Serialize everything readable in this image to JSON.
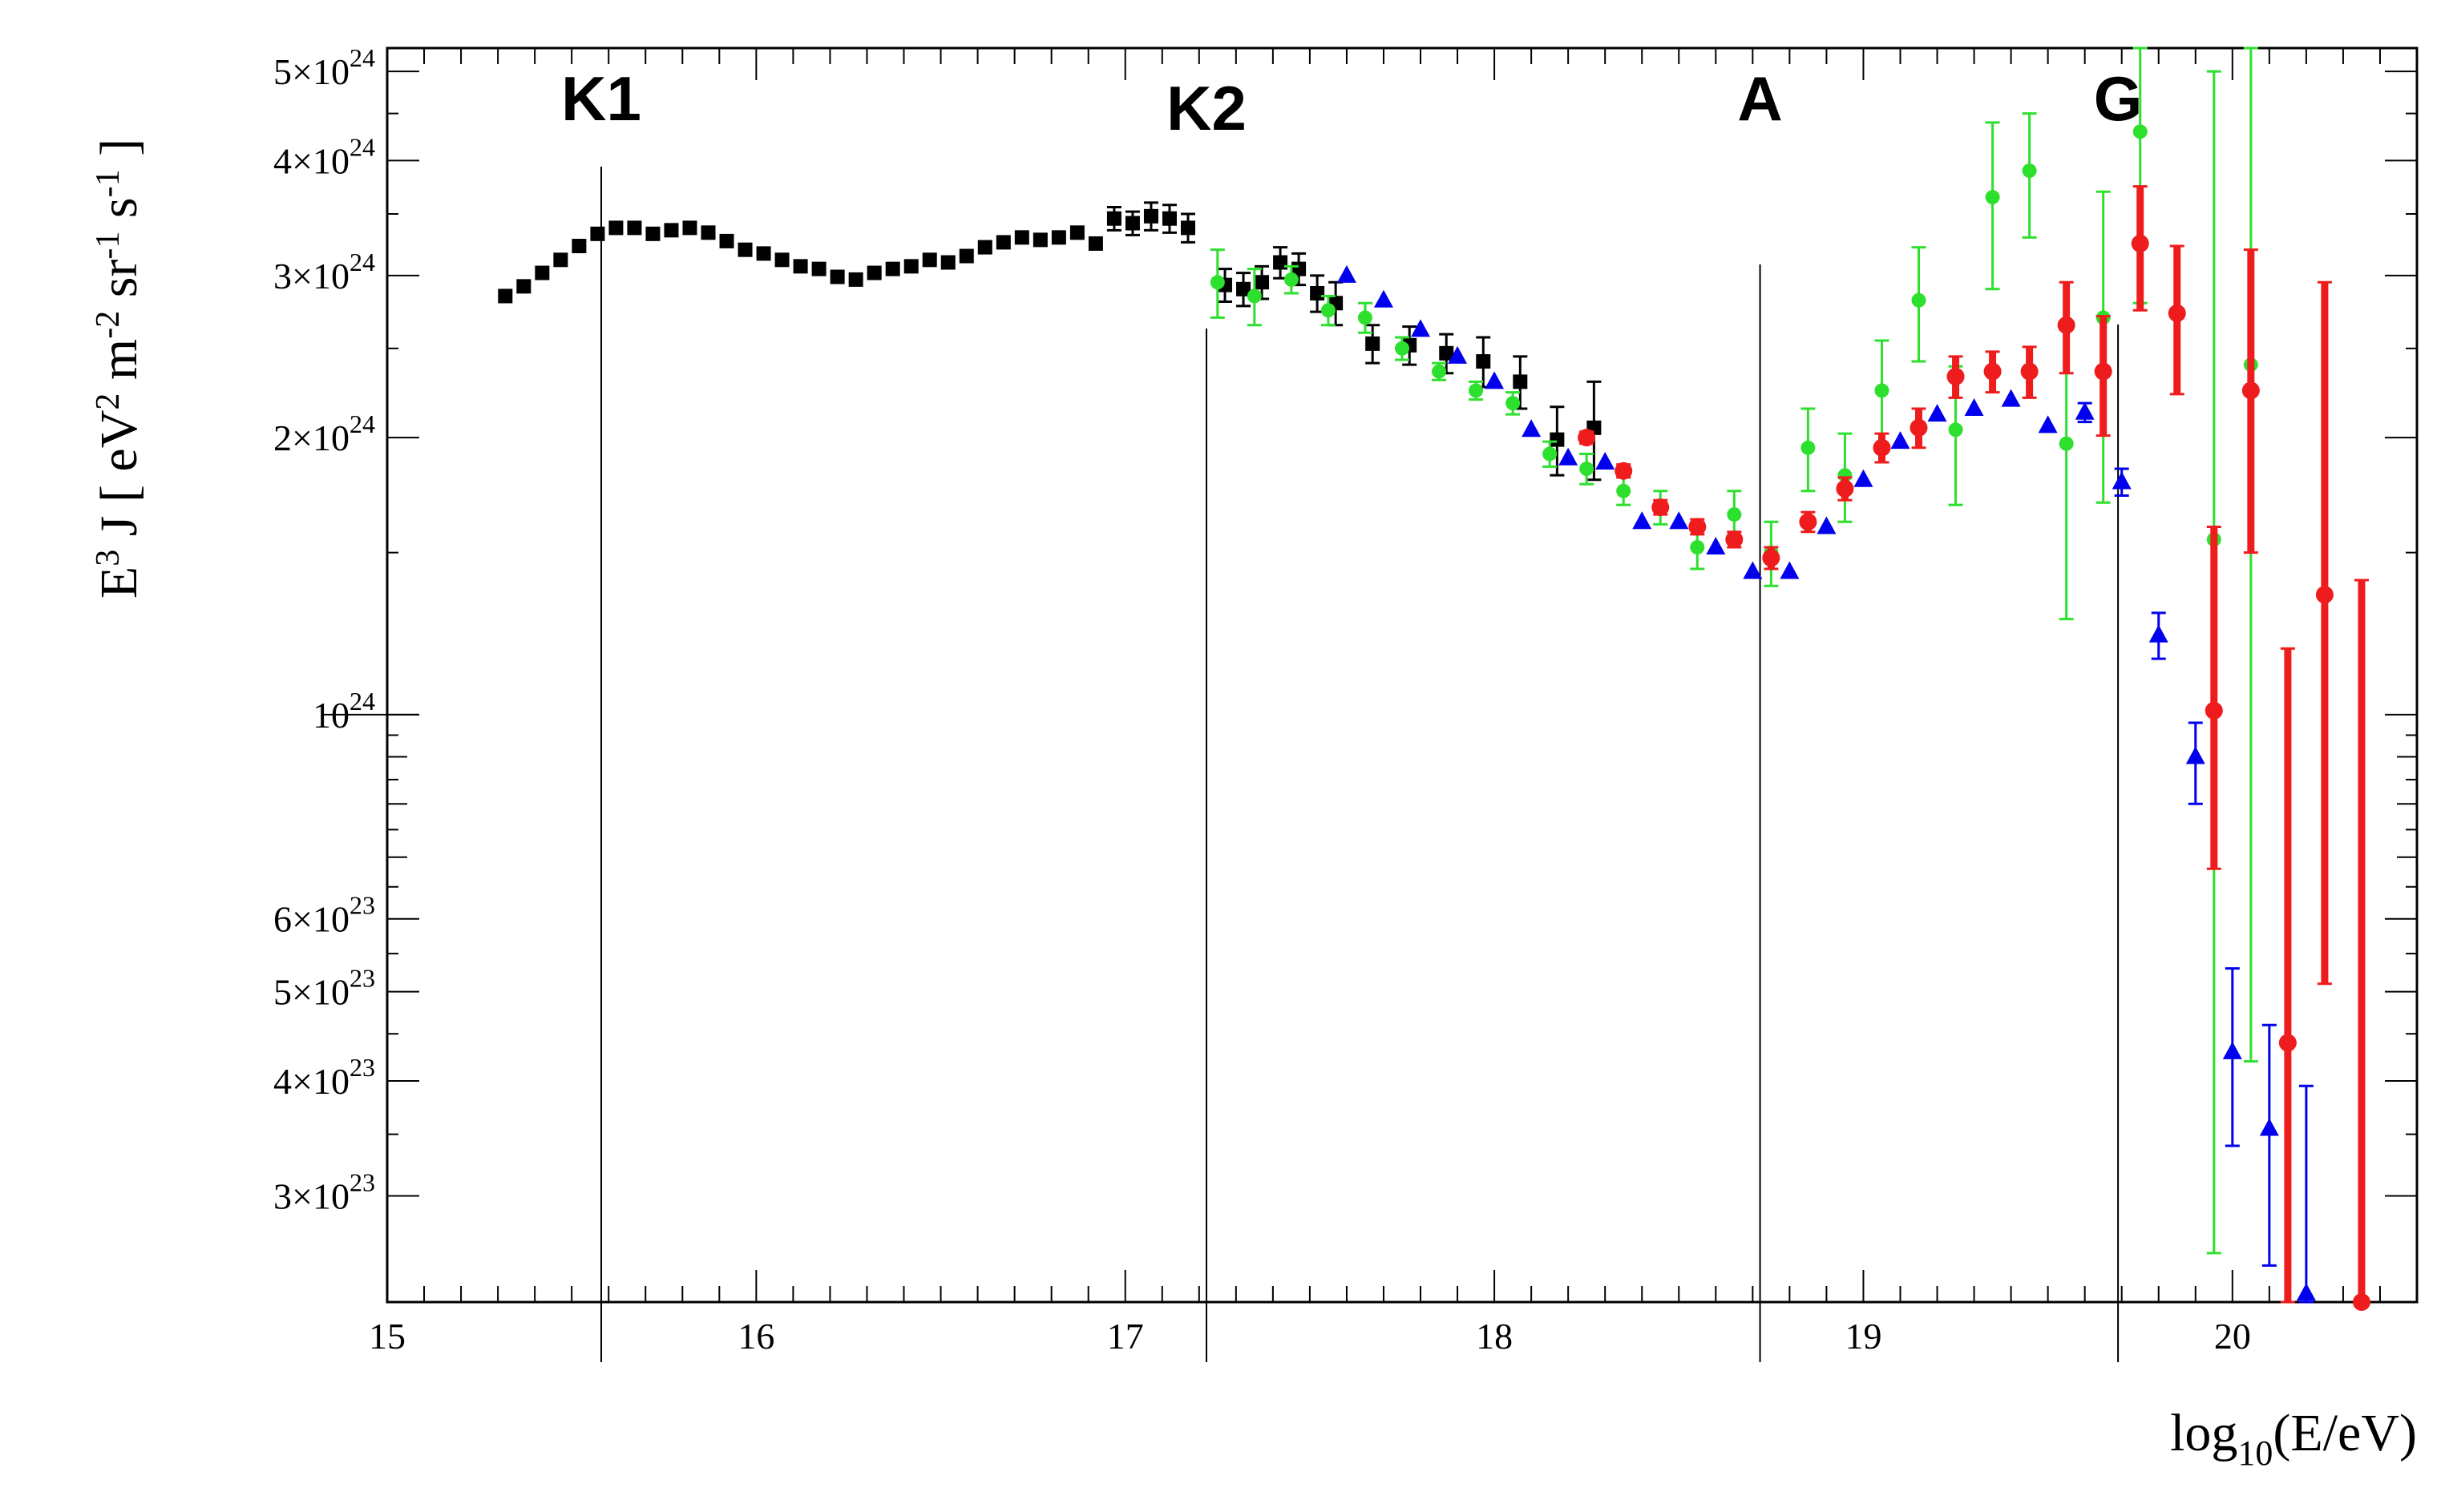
{
  "chart_data": {
    "type": "scatter",
    "title": "",
    "xlabel": "log10(E/eV)",
    "ylabel": "E3 J [ eV2 m-2 sr-1 s-1 ]",
    "xlim": [
      15,
      20.5
    ],
    "ylim": [
      2.3e+23,
      5.3e+24
    ],
    "yscale": "log",
    "grid": false,
    "x_ticks": [
      {
        "value": 15,
        "label": "15"
      },
      {
        "value": 16,
        "label": "16"
      },
      {
        "value": 17,
        "label": "17"
      },
      {
        "value": 18,
        "label": "18"
      },
      {
        "value": 19,
        "label": "19"
      },
      {
        "value": 20,
        "label": "20"
      }
    ],
    "y_ticks": [
      {
        "value": 3e+23,
        "mant": "3×10",
        "exp": "23"
      },
      {
        "value": 4e+23,
        "mant": "4×10",
        "exp": "23"
      },
      {
        "value": 5e+23,
        "mant": "5×10",
        "exp": "23"
      },
      {
        "value": 6e+23,
        "mant": "6×10",
        "exp": "23"
      },
      {
        "value": 1e+24,
        "mant": "10",
        "exp": "24"
      },
      {
        "value": 2e+24,
        "mant": "2×10",
        "exp": "24"
      },
      {
        "value": 3e+24,
        "mant": "3×10",
        "exp": "24"
      },
      {
        "value": 4e+24,
        "mant": "4×10",
        "exp": "24"
      },
      {
        "value": 5e+24,
        "mant": "5×10",
        "exp": "24"
      }
    ],
    "x_label_parts": {
      "base": "log",
      "sub": "10",
      "rest": "(E/eV)"
    },
    "y_label_parts": [
      {
        "t": "E",
        "sup": "3"
      },
      {
        "t": " J [ eV",
        "sup": "2"
      },
      {
        "t": " m",
        "sup": "-2"
      },
      {
        "t": " sr",
        "sup": "-1"
      },
      {
        "t": " s",
        "sup": "-1"
      },
      {
        "t": " ]",
        "sup": ""
      }
    ],
    "annotations": [
      {
        "label": "K1",
        "x": 15.58
      },
      {
        "label": "K2",
        "x": 17.22
      },
      {
        "label": "A",
        "x": 18.72
      },
      {
        "label": "G",
        "x": 19.69
      }
    ],
    "series": [
      {
        "color": "#000000",
        "marker": "square",
        "points": [
          {
            "x": 15.32,
            "y": 2.85e+24
          },
          {
            "x": 15.37,
            "y": 2.92e+24
          },
          {
            "x": 15.42,
            "y": 3.02e+24
          },
          {
            "x": 15.47,
            "y": 3.12e+24
          },
          {
            "x": 15.52,
            "y": 3.23e+24
          },
          {
            "x": 15.57,
            "y": 3.33e+24
          },
          {
            "x": 15.62,
            "y": 3.38e+24
          },
          {
            "x": 15.67,
            "y": 3.38e+24
          },
          {
            "x": 15.72,
            "y": 3.33e+24
          },
          {
            "x": 15.77,
            "y": 3.36e+24
          },
          {
            "x": 15.82,
            "y": 3.38e+24
          },
          {
            "x": 15.87,
            "y": 3.34e+24
          },
          {
            "x": 15.92,
            "y": 3.27e+24
          },
          {
            "x": 15.97,
            "y": 3.2e+24
          },
          {
            "x": 16.02,
            "y": 3.17e+24
          },
          {
            "x": 16.07,
            "y": 3.12e+24
          },
          {
            "x": 16.12,
            "y": 3.07e+24
          },
          {
            "x": 16.17,
            "y": 3.05e+24
          },
          {
            "x": 16.22,
            "y": 2.99e+24
          },
          {
            "x": 16.27,
            "y": 2.97e+24
          },
          {
            "x": 16.32,
            "y": 3.02e+24
          },
          {
            "x": 16.37,
            "y": 3.05e+24
          },
          {
            "x": 16.42,
            "y": 3.07e+24
          },
          {
            "x": 16.47,
            "y": 3.12e+24
          },
          {
            "x": 16.52,
            "y": 3.1e+24
          },
          {
            "x": 16.57,
            "y": 3.15e+24
          },
          {
            "x": 16.62,
            "y": 3.22e+24
          },
          {
            "x": 16.67,
            "y": 3.26e+24
          },
          {
            "x": 16.72,
            "y": 3.3e+24
          },
          {
            "x": 16.77,
            "y": 3.28e+24
          },
          {
            "x": 16.82,
            "y": 3.3e+24
          },
          {
            "x": 16.87,
            "y": 3.34e+24
          },
          {
            "x": 16.92,
            "y": 3.25e+24
          },
          {
            "x": 16.97,
            "y": 3.46e+24,
            "err": 1e+23
          },
          {
            "x": 17.02,
            "y": 3.42e+24,
            "err": 1e+23
          },
          {
            "x": 17.07,
            "y": 3.48e+24,
            "err": 1.2e+23
          },
          {
            "x": 17.12,
            "y": 3.46e+24,
            "err": 1.2e+23
          },
          {
            "x": 17.17,
            "y": 3.38e+24,
            "err": 1.2e+23
          },
          {
            "x": 17.27,
            "y": 2.93e+24,
            "err": 1.2e+23
          },
          {
            "x": 17.32,
            "y": 2.9e+24,
            "err": 1.2e+23
          },
          {
            "x": 17.37,
            "y": 2.95e+24,
            "err": 1.2e+23
          },
          {
            "x": 17.42,
            "y": 3.1e+24,
            "err": 1.2e+23
          },
          {
            "x": 17.47,
            "y": 3.05e+24,
            "err": 1.2e+23
          },
          {
            "x": 17.52,
            "y": 2.87e+24,
            "err": 1.3e+23
          },
          {
            "x": 17.57,
            "y": 2.8e+24,
            "err": 1.5e+23
          },
          {
            "x": 17.67,
            "y": 2.53e+24,
            "err": 1.2e+23
          },
          {
            "x": 17.77,
            "y": 2.52e+24,
            "err": 1.2e+23
          },
          {
            "x": 17.87,
            "y": 2.47e+24,
            "err": 1.2e+23
          },
          {
            "x": 17.97,
            "y": 2.42e+24,
            "err": 1.5e+23
          },
          {
            "x": 18.07,
            "y": 2.3e+24,
            "err": 1.5e+23
          },
          {
            "x": 18.17,
            "y": 1.99e+24,
            "err": 1.7e+23
          },
          {
            "x": 18.27,
            "y": 2.05e+24,
            "err": 2.5e+23
          }
        ]
      },
      {
        "color": "#2ee02e",
        "marker": "circle",
        "points": [
          {
            "x": 17.25,
            "y": 2.95e+24,
            "err": 2.5e+23
          },
          {
            "x": 17.35,
            "y": 2.85e+24,
            "err": 2e+23
          },
          {
            "x": 17.45,
            "y": 2.97e+24,
            "err": 1e+23
          },
          {
            "x": 17.55,
            "y": 2.75e+24,
            "err": 1e+23
          },
          {
            "x": 17.65,
            "y": 2.7e+24,
            "err": 1e+23
          },
          {
            "x": 17.75,
            "y": 2.5e+24,
            "err": 7e+22
          },
          {
            "x": 17.85,
            "y": 2.36e+24,
            "err": 5e+22
          },
          {
            "x": 17.95,
            "y": 2.25e+24,
            "err": 5e+22
          },
          {
            "x": 18.05,
            "y": 2.18e+24,
            "err": 6e+22
          },
          {
            "x": 18.15,
            "y": 1.92e+24,
            "err": 6e+22
          },
          {
            "x": 18.25,
            "y": 1.85e+24,
            "err": 7e+22
          },
          {
            "x": 18.35,
            "y": 1.75e+24,
            "err": 6e+22
          },
          {
            "x": 18.45,
            "y": 1.68e+24,
            "err": 7e+22
          },
          {
            "x": 18.55,
            "y": 1.52e+24,
            "err": 8e+22
          },
          {
            "x": 18.65,
            "y": 1.65e+24,
            "err": 1e+23
          },
          {
            "x": 18.75,
            "y": 1.5e+24,
            "err": 1.2e+23
          },
          {
            "x": 18.85,
            "y": 1.95e+24,
            "err": 2e+23
          },
          {
            "x": 18.95,
            "y": 1.82e+24,
            "err": 2e+23
          },
          {
            "x": 19.05,
            "y": 2.25e+24,
            "err": 3e+23
          },
          {
            "x": 19.15,
            "y": 2.82e+24,
            "err": 4e+23
          },
          {
            "x": 19.25,
            "y": 2.04e+24,
            "err": 3.5e+23
          },
          {
            "x": 19.35,
            "y": 3.65e+24,
            "err": 7.5e+23
          },
          {
            "x": 19.45,
            "y": 3.9e+24,
            "err": 6e+23
          },
          {
            "x": 19.55,
            "y": 1.97e+24,
            "err": 7e+23
          },
          {
            "x": 19.65,
            "y": 2.7e+24,
            "err": 1e+24
          },
          {
            "x": 19.75,
            "y": 4.3e+24,
            "err": 1.5e+24
          },
          {
            "x": 19.95,
            "y": 1.55e+24,
            "lo": 2.6e+23,
            "hi": 5e+24
          },
          {
            "x": 20.05,
            "y": 2.4e+24,
            "lo": 4.2e+23,
            "hi": 5.3e+24
          }
        ]
      },
      {
        "color": "#0000ee",
        "marker": "triangle",
        "points": [
          {
            "x": 17.6,
            "y": 3e+24
          },
          {
            "x": 17.7,
            "y": 2.82e+24
          },
          {
            "x": 17.8,
            "y": 2.62e+24
          },
          {
            "x": 17.9,
            "y": 2.45e+24
          },
          {
            "x": 18.0,
            "y": 2.3e+24
          },
          {
            "x": 18.1,
            "y": 2.04e+24
          },
          {
            "x": 18.2,
            "y": 1.9e+24
          },
          {
            "x": 18.3,
            "y": 1.88e+24
          },
          {
            "x": 18.4,
            "y": 1.62e+24
          },
          {
            "x": 18.5,
            "y": 1.62e+24
          },
          {
            "x": 18.6,
            "y": 1.52e+24
          },
          {
            "x": 18.7,
            "y": 1.43e+24
          },
          {
            "x": 18.8,
            "y": 1.43e+24
          },
          {
            "x": 18.9,
            "y": 1.6e+24
          },
          {
            "x": 19.0,
            "y": 1.8e+24
          },
          {
            "x": 19.1,
            "y": 1.98e+24
          },
          {
            "x": 19.2,
            "y": 2.12e+24
          },
          {
            "x": 19.3,
            "y": 2.15e+24
          },
          {
            "x": 19.4,
            "y": 2.2e+24
          },
          {
            "x": 19.5,
            "y": 2.06e+24
          },
          {
            "x": 19.6,
            "y": 2.13e+24,
            "err": 5e+22
          },
          {
            "x": 19.7,
            "y": 1.79e+24,
            "err": 6e+22
          },
          {
            "x": 19.8,
            "y": 1.22e+24,
            "err": 7e+22
          },
          {
            "x": 19.9,
            "y": 9e+23,
            "lo": 8e+23,
            "hi": 9.8e+23
          },
          {
            "x": 20.0,
            "y": 4.3e+23,
            "lo": 3.4e+23,
            "hi": 5.3e+23
          },
          {
            "x": 20.1,
            "y": 3.55e+23,
            "lo": 2.52e+23,
            "hi": 4.6e+23
          },
          {
            "x": 20.2,
            "y": 2.35e+23,
            "lo": 2.25e+23,
            "hi": 3.95e+23
          }
        ]
      },
      {
        "color": "#ee1c1c",
        "marker": "circle",
        "bold_err": true,
        "points": [
          {
            "x": 18.25,
            "y": 2e+24,
            "err": 3e+22
          },
          {
            "x": 18.35,
            "y": 1.84e+24,
            "err": 3e+22
          },
          {
            "x": 18.45,
            "y": 1.68e+24,
            "err": 3e+22
          },
          {
            "x": 18.55,
            "y": 1.6e+24,
            "err": 3e+22
          },
          {
            "x": 18.65,
            "y": 1.55e+24,
            "err": 3e+22
          },
          {
            "x": 18.75,
            "y": 1.48e+24,
            "err": 4e+22
          },
          {
            "x": 18.85,
            "y": 1.62e+24,
            "err": 4e+22
          },
          {
            "x": 18.95,
            "y": 1.76e+24,
            "err": 5e+22
          },
          {
            "x": 19.05,
            "y": 1.95e+24,
            "err": 7e+22
          },
          {
            "x": 19.15,
            "y": 2.05e+24,
            "err": 1e+23
          },
          {
            "x": 19.25,
            "y": 2.33e+24,
            "err": 1.2e+23
          },
          {
            "x": 19.35,
            "y": 2.36e+24,
            "err": 1.2e+23
          },
          {
            "x": 19.45,
            "y": 2.36e+24,
            "err": 1.5e+23
          },
          {
            "x": 19.55,
            "y": 2.65e+24,
            "err": 3e+23
          },
          {
            "x": 19.65,
            "y": 2.36e+24,
            "err": 3.5e+23
          },
          {
            "x": 19.75,
            "y": 3.25e+24,
            "err": 5e+23
          },
          {
            "x": 19.85,
            "y": 2.73e+24,
            "err": 5e+23
          },
          {
            "x": 19.95,
            "y": 1.01e+24,
            "lo": 6.8e+23,
            "hi": 1.6e+24
          },
          {
            "x": 20.05,
            "y": 2.25e+24,
            "lo": 1.5e+24,
            "hi": 3.2e+24
          },
          {
            "x": 20.15,
            "y": 4.4e+23,
            "lo": 2.3e+23,
            "hi": 1.18e+24
          },
          {
            "x": 20.25,
            "y": 1.35e+24,
            "lo": 5.1e+23,
            "hi": 2.95e+24
          },
          {
            "x": 20.35,
            "y": 2.3e+23,
            "lo": 2.3e+23,
            "hi": 1.4e+24
          }
        ]
      }
    ]
  }
}
